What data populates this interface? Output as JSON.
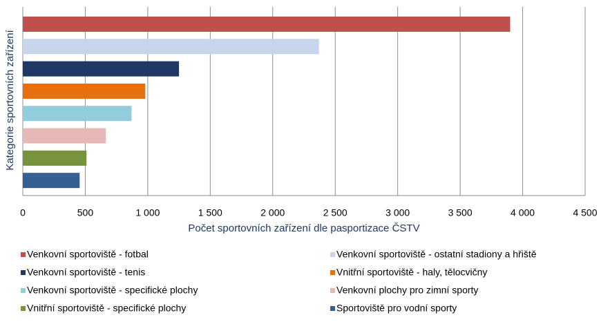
{
  "chart_data": {
    "type": "hbar",
    "xlabel": "Počet sportovních zařízení dle pasportizace ČSTV",
    "ylabel": "Kategorie sportovních zařízení",
    "xlim": [
      0,
      4500
    ],
    "xticks": [
      0,
      500,
      {
        "value": 1000,
        "label": "1 000"
      },
      {
        "value": 1500,
        "label": "1 500"
      },
      {
        "value": 2000,
        "label": "2 000"
      },
      {
        "value": 2500,
        "label": "2 500"
      },
      {
        "value": 3000,
        "label": "3 000"
      },
      {
        "value": 3500,
        "label": "3 500"
      },
      {
        "value": 4000,
        "label": "4 000"
      },
      {
        "value": 4500,
        "label": "4 500"
      }
    ],
    "grid": true,
    "legend": "bottom",
    "series": [
      {
        "name": "Venkovní sportoviště - fotbal",
        "color": "#c0504d",
        "values": [
          3900
        ]
      },
      {
        "name": "Venkovní sportoviště - ostatní stadiony a hřiště",
        "color": "#c6d5ec",
        "values": [
          2370
        ]
      },
      {
        "name": "Venkovní sportoviště - tenis",
        "color": "#1f3864",
        "values": [
          1250
        ]
      },
      {
        "name": "Vnitřní sportoviště - haly, tělocvičny",
        "color": "#e8700c",
        "values": [
          980
        ]
      },
      {
        "name": "Venkovní sportoviště - specifické plochy",
        "color": "#93cddd",
        "values": [
          870
        ]
      },
      {
        "name": "Venkovní plochy pro zimní sporty",
        "color": "#e6b9b8",
        "values": [
          665
        ]
      },
      {
        "name": "Vnitřní sportoviště - specifické plochy",
        "color": "#77933c",
        "values": [
          510
        ]
      },
      {
        "name": "Sportoviště pro vodní sporty",
        "color": "#366092",
        "values": [
          455
        ]
      }
    ]
  }
}
